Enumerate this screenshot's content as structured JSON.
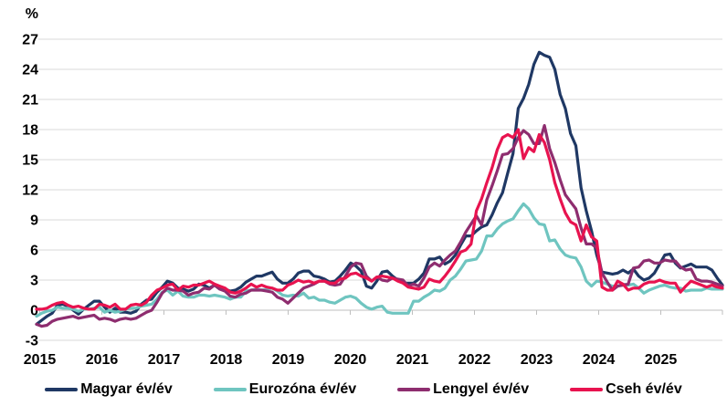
{
  "chart_data": {
    "type": "line",
    "title": "",
    "ylabel": "%",
    "xlabel": "",
    "ylim": [
      -3,
      27
    ],
    "ytick_step": 3,
    "yticks": [
      27,
      24,
      21,
      18,
      15,
      12,
      9,
      6,
      3,
      0,
      -3
    ],
    "xticks": [
      "2015",
      "2016",
      "2017",
      "2018",
      "2019",
      "2020",
      "2021",
      "2022",
      "2023",
      "2024",
      "2025"
    ],
    "grid": true,
    "legend_position": "bottom",
    "grid_color": "#d9d9d9",
    "axis_color": "#bfbfbf",
    "x_start": "2015-01",
    "x_end": "2025-12",
    "x_frequency": "monthly",
    "series": [
      {
        "name": "Magyar év/év",
        "color": "#1F3864",
        "values": [
          -1.4,
          -1.0,
          -0.6,
          -0.3,
          0.5,
          0.6,
          0.4,
          0.0,
          -0.4,
          0.1,
          0.5,
          0.9,
          0.9,
          0.3,
          -0.2,
          0.2,
          -0.2,
          -0.2,
          -0.3,
          -0.1,
          0.6,
          1.0,
          1.1,
          1.8,
          2.3,
          2.9,
          2.7,
          2.2,
          2.1,
          1.9,
          2.1,
          2.6,
          2.5,
          2.2,
          2.5,
          2.1,
          2.1,
          1.9,
          2.0,
          2.3,
          2.8,
          3.1,
          3.4,
          3.4,
          3.6,
          3.8,
          3.1,
          2.7,
          2.7,
          3.1,
          3.7,
          3.9,
          3.9,
          3.4,
          3.3,
          3.1,
          2.8,
          2.9,
          3.4,
          4.0,
          4.7,
          4.4,
          3.9,
          2.4,
          2.2,
          2.9,
          3.8,
          3.9,
          3.4,
          3.0,
          2.7,
          2.7,
          2.7,
          3.1,
          3.7,
          5.1,
          5.1,
          5.3,
          4.6,
          4.9,
          5.5,
          6.5,
          7.4,
          7.4,
          7.9,
          8.3,
          8.5,
          9.5,
          10.7,
          11.7,
          13.7,
          15.6,
          20.1,
          21.1,
          22.5,
          24.5,
          25.7,
          25.4,
          25.2,
          24.0,
          21.5,
          20.1,
          17.6,
          16.4,
          12.2,
          9.9,
          7.9,
          5.5,
          3.8,
          3.7,
          3.6,
          3.7,
          4.0,
          3.7,
          4.1,
          3.4,
          3.0,
          3.2,
          3.7,
          4.6,
          5.5,
          5.6,
          4.7,
          4.2,
          4.4,
          4.6,
          4.3,
          4.3,
          4.3,
          4.0,
          3.2,
          2.5
        ]
      },
      {
        "name": "Eurozóna év/év",
        "color": "#6FC5C0",
        "values": [
          -0.6,
          -0.3,
          -0.1,
          0.0,
          0.3,
          0.2,
          0.2,
          0.1,
          -0.1,
          0.1,
          0.1,
          0.2,
          0.3,
          -0.2,
          0.0,
          -0.2,
          -0.1,
          0.1,
          0.2,
          0.2,
          0.4,
          0.5,
          0.6,
          1.1,
          1.8,
          2.0,
          1.5,
          1.9,
          1.4,
          1.3,
          1.3,
          1.5,
          1.5,
          1.4,
          1.5,
          1.4,
          1.3,
          1.1,
          1.3,
          1.3,
          1.9,
          2.0,
          2.1,
          2.0,
          2.1,
          2.2,
          1.9,
          1.5,
          1.4,
          1.5,
          1.4,
          1.7,
          1.2,
          1.3,
          1.0,
          1.0,
          0.8,
          0.7,
          1.0,
          1.3,
          1.4,
          1.2,
          0.7,
          0.3,
          0.1,
          0.3,
          0.4,
          -0.2,
          -0.3,
          -0.3,
          -0.3,
          -0.3,
          0.9,
          0.9,
          1.3,
          1.6,
          2.0,
          1.9,
          2.2,
          3.0,
          3.4,
          4.1,
          4.9,
          5.0,
          5.1,
          5.9,
          7.4,
          7.4,
          8.1,
          8.6,
          8.9,
          9.1,
          9.9,
          10.6,
          10.1,
          9.2,
          8.6,
          8.5,
          6.9,
          7.0,
          6.1,
          5.5,
          5.3,
          5.2,
          4.3,
          2.9,
          2.4,
          2.9,
          2.8,
          2.6,
          2.4,
          2.4,
          2.6,
          2.5,
          2.6,
          2.2,
          1.7,
          2.0,
          2.2,
          2.4,
          2.5,
          2.3,
          2.2,
          2.2,
          1.9,
          2.0,
          2.0,
          2.0,
          2.2,
          2.1,
          2.1,
          2.1
        ]
      },
      {
        "name": "Lengyel év/év",
        "color": "#8E2D6F",
        "values": [
          -1.4,
          -1.6,
          -1.5,
          -1.1,
          -0.9,
          -0.8,
          -0.7,
          -0.6,
          -0.8,
          -0.7,
          -0.6,
          -0.5,
          -0.9,
          -0.8,
          -0.9,
          -1.1,
          -0.9,
          -0.8,
          -0.9,
          -0.8,
          -0.5,
          -0.2,
          0.0,
          0.8,
          1.7,
          2.2,
          2.0,
          2.0,
          1.9,
          1.5,
          1.7,
          1.8,
          2.2,
          2.1,
          2.5,
          2.1,
          1.9,
          1.4,
          1.3,
          1.6,
          1.7,
          2.0,
          2.0,
          2.0,
          1.9,
          1.8,
          1.3,
          1.1,
          0.7,
          1.2,
          1.7,
          2.2,
          2.4,
          2.6,
          2.9,
          2.9,
          2.6,
          2.5,
          2.6,
          3.4,
          4.3,
          4.7,
          4.6,
          3.4,
          2.9,
          3.3,
          3.0,
          2.9,
          3.2,
          3.1,
          3.0,
          2.4,
          2.6,
          2.4,
          3.2,
          4.3,
          4.7,
          4.4,
          5.0,
          5.5,
          5.9,
          6.8,
          7.8,
          8.6,
          9.4,
          8.5,
          11.0,
          12.4,
          13.9,
          15.5,
          15.6,
          16.1,
          17.2,
          17.9,
          17.5,
          16.6,
          16.6,
          18.4,
          16.1,
          14.7,
          13.0,
          11.5,
          10.8,
          10.1,
          8.2,
          6.6,
          6.6,
          6.2,
          3.7,
          2.8,
          2.0,
          2.4,
          2.5,
          2.6,
          4.2,
          4.3,
          4.9,
          5.0,
          4.7,
          4.7,
          5.0,
          4.9,
          4.9,
          4.3,
          4.0,
          4.1,
          3.1,
          2.9,
          2.9,
          2.8,
          2.6,
          2.4
        ]
      },
      {
        "name": "Cseh év/év",
        "color": "#E8134F",
        "values": [
          0.1,
          0.1,
          0.2,
          0.5,
          0.7,
          0.8,
          0.5,
          0.3,
          0.4,
          0.2,
          0.1,
          0.1,
          0.6,
          0.5,
          0.3,
          0.6,
          0.1,
          0.1,
          0.5,
          0.6,
          0.5,
          0.8,
          1.5,
          2.0,
          2.2,
          2.5,
          2.6,
          2.0,
          2.4,
          2.3,
          2.5,
          2.5,
          2.7,
          2.9,
          2.6,
          2.4,
          2.2,
          1.8,
          1.7,
          1.9,
          2.2,
          2.6,
          2.3,
          2.5,
          2.3,
          2.2,
          2.0,
          2.0,
          2.5,
          2.7,
          3.0,
          2.8,
          2.9,
          2.7,
          2.9,
          2.9,
          2.7,
          2.7,
          3.1,
          3.2,
          3.6,
          3.7,
          3.4,
          3.2,
          2.9,
          3.3,
          3.4,
          3.3,
          3.2,
          2.9,
          2.7,
          2.3,
          2.2,
          2.1,
          2.3,
          3.1,
          2.9,
          2.8,
          3.4,
          4.1,
          4.9,
          5.8,
          6.0,
          6.6,
          9.9,
          11.1,
          12.7,
          14.2,
          16.0,
          17.2,
          17.5,
          17.2,
          18.0,
          15.1,
          16.2,
          15.8,
          17.5,
          16.7,
          15.0,
          12.7,
          11.1,
          9.7,
          8.8,
          8.5,
          6.9,
          8.5,
          7.3,
          6.9,
          2.3,
          2.0,
          2.0,
          2.9,
          2.6,
          2.0,
          2.2,
          2.2,
          2.6,
          2.8,
          2.8,
          3.0,
          2.8,
          2.7,
          2.7,
          1.8,
          2.4,
          2.9,
          2.7,
          2.5,
          2.3,
          2.5,
          2.3,
          2.2
        ]
      }
    ]
  }
}
